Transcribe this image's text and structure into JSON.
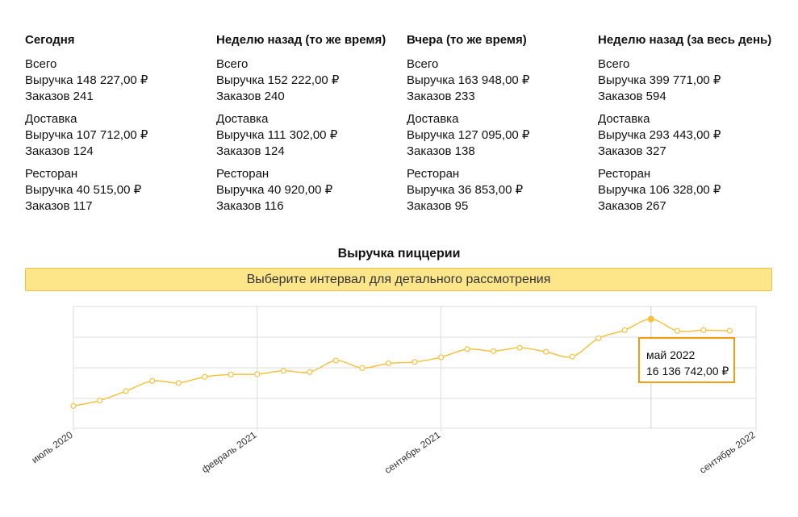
{
  "stats": [
    {
      "title": "Сегодня",
      "groups": [
        {
          "name": "Всего",
          "revenue": "Выручка 148 227,00 ₽",
          "orders": "Заказов 241"
        },
        {
          "name": "Доставка",
          "revenue": "Выручка 107 712,00 ₽",
          "orders": "Заказов 124"
        },
        {
          "name": "Ресторан",
          "revenue": "Выручка 40 515,00 ₽",
          "orders": "Заказов 117"
        }
      ]
    },
    {
      "title": "Неделю назад (то же время)",
      "groups": [
        {
          "name": "Всего",
          "revenue": "Выручка 152 222,00 ₽",
          "orders": "Заказов 240"
        },
        {
          "name": "Доставка",
          "revenue": "Выручка 111 302,00 ₽",
          "orders": "Заказов 124"
        },
        {
          "name": "Ресторан",
          "revenue": "Выручка 40 920,00 ₽",
          "orders": "Заказов 116"
        }
      ]
    },
    {
      "title": "Вчера (то же время)",
      "groups": [
        {
          "name": "Всего",
          "revenue": "Выручка 163 948,00 ₽",
          "orders": "Заказов 233"
        },
        {
          "name": "Доставка",
          "revenue": "Выручка 127 095,00 ₽",
          "orders": "Заказов 138"
        },
        {
          "name": "Ресторан",
          "revenue": "Выручка 36 853,00 ₽",
          "orders": "Заказов 95"
        }
      ]
    },
    {
      "title": "Неделю назад (за весь день)",
      "groups": [
        {
          "name": "Всего",
          "revenue": "Выручка 399 771,00 ₽",
          "orders": "Заказов 594"
        },
        {
          "name": "Доставка",
          "revenue": "Выручка 293 443,00 ₽",
          "orders": "Заказов 327"
        },
        {
          "name": "Ресторан",
          "revenue": "Выручка 106 328,00 ₽",
          "orders": "Заказов 267"
        }
      ]
    }
  ],
  "chart": {
    "title": "Выручка пиццерии",
    "banner": "Выберите интервал для детального рассмотрения",
    "tooltip": {
      "label": "май 2022",
      "value": "16 136 742,00 ₽"
    },
    "line_color": "#f5c242",
    "tooltip_border_color": "#f39c12"
  },
  "chart_data": {
    "type": "line",
    "title": "Выручка пиццерии",
    "xlabel": "",
    "ylabel": "",
    "x_tick_labels": [
      "июль 2020",
      "февраль 2021",
      "сентябрь 2021",
      "сентябрь 2022"
    ],
    "x": [
      "2020-07",
      "2020-08",
      "2020-09",
      "2020-10",
      "2020-11",
      "2020-12",
      "2021-01",
      "2021-02",
      "2021-03",
      "2021-04",
      "2021-05",
      "2021-06",
      "2021-07",
      "2021-08",
      "2021-09",
      "2021-10",
      "2021-11",
      "2021-12",
      "2022-01",
      "2022-02",
      "2022-03",
      "2022-04",
      "2022-05",
      "2022-06",
      "2022-07",
      "2022-08"
    ],
    "values": [
      3300000,
      4100000,
      5500000,
      7000000,
      6700000,
      7600000,
      7950000,
      8000000,
      8500000,
      8300000,
      10000000,
      8900000,
      9600000,
      9800000,
      10500000,
      11700000,
      11400000,
      11900000,
      11300000,
      10600000,
      13300000,
      14500000,
      16136742,
      14400000,
      14500000,
      14400000
    ],
    "grid": true,
    "legend": "none",
    "selected_point": {
      "x": "2022-05",
      "value": 16136742
    }
  }
}
